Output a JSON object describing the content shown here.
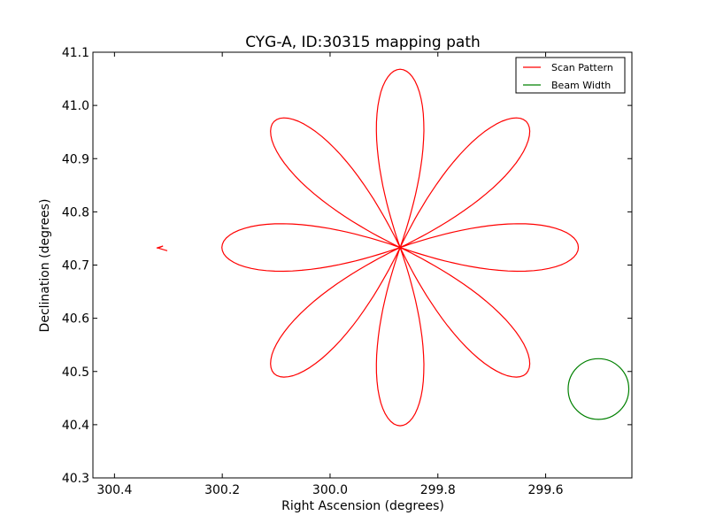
{
  "chart_data": {
    "type": "line",
    "title": "CYG-A, ID:30315 mapping path",
    "xlabel": "Right Ascension (degrees)",
    "ylabel": "Declination (degrees)",
    "xlim": [
      300.44,
      299.44
    ],
    "ylim": [
      40.3,
      41.1
    ],
    "x_ticks": [
      300.4,
      300.2,
      300.0,
      299.8,
      299.6
    ],
    "x_tick_labels": [
      "300.4",
      "300.2",
      "300.0",
      "299.8",
      "299.6"
    ],
    "y_ticks": [
      40.3,
      40.4,
      40.5,
      40.6,
      40.7,
      40.8,
      40.9,
      41.0,
      41.1
    ],
    "y_tick_labels": [
      "40.3",
      "40.4",
      "40.5",
      "40.6",
      "40.7",
      "40.8",
      "40.9",
      "41.0",
      "41.1"
    ],
    "grid": false,
    "legend_position": "top-right",
    "series": [
      {
        "name": "Scan Pattern",
        "color": "#ff0000",
        "kind": "rose_curve",
        "center": [
          299.87,
          40.733
        ],
        "petals": 8,
        "petal_length_deg": 0.335,
        "petal_half_width_deg": 0.058,
        "petal_start_angle_deg": 90,
        "tail": [
          [
            300.322,
            40.732
          ],
          [
            300.31,
            40.736
          ],
          [
            300.319,
            40.732
          ],
          [
            300.302,
            40.727
          ]
        ]
      },
      {
        "name": "Beam Width",
        "color": "#008000",
        "kind": "circle",
        "center": [
          299.502,
          40.467
        ],
        "radius_deg": 0.057
      }
    ]
  }
}
